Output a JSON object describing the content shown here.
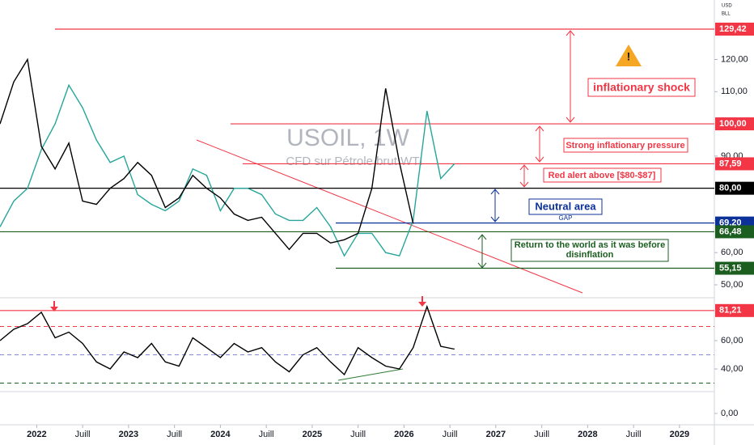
{
  "header": {
    "symbol": "USOIL, 1W",
    "description": "CFD sur Pétrole brut WTI",
    "currency": "USD",
    "unit": "BLL"
  },
  "annotations": {
    "shock": "inflationary shock",
    "pressure": "Strong inflationary pressure",
    "alert": "Red alert above [$80-$87]",
    "neutral": "Neutral area",
    "gap": "GAP",
    "return": "Return to the world as it was before disinflation"
  },
  "chart_data": [
    {
      "type": "line",
      "ylim": [
        46.74,
        138.47
      ],
      "xlim": [
        2021.6,
        2029.38
      ],
      "yticks": [
        {
          "value": 120,
          "label": "120,00"
        },
        {
          "value": 110,
          "label": "110,00"
        },
        {
          "value": 90,
          "label": "90,00"
        },
        {
          "value": 70,
          "label": "70,00"
        },
        {
          "value": 60,
          "label": "60,00"
        },
        {
          "value": 50,
          "label": "50,00"
        }
      ],
      "xticks": [
        2022,
        {
          "value": 2022.5,
          "label": "Juill"
        },
        2023,
        {
          "value": 2023.5,
          "label": "Juill"
        },
        2024,
        {
          "value": 2024.5,
          "label": "Juill"
        },
        2025,
        {
          "value": 2025.5,
          "label": "Juill"
        },
        2026,
        {
          "value": 2026.5,
          "label": "Juill"
        },
        2027,
        {
          "value": 2027.5,
          "label": "Juill"
        },
        2028,
        {
          "value": 2028.5,
          "label": "Juill"
        },
        2029
      ],
      "levels": [
        {
          "value": 129.42,
          "label": "129,42",
          "color": "#f23645"
        },
        {
          "value": 100,
          "label": "100,00",
          "color": "#f23645"
        },
        {
          "value": 87.59,
          "label": "87,59",
          "color": "#f23645"
        },
        {
          "value": 80,
          "label": "80,00",
          "color": "#000000"
        },
        {
          "value": 69.2,
          "label": "69,20",
          "color": "#0c3299"
        },
        {
          "value": 66.48,
          "label": "66,48",
          "color": "#1b5e20"
        },
        {
          "value": 55.15,
          "label": "55,15",
          "color": "#1b5e20"
        }
      ],
      "x": [
        2021.6,
        2021.75,
        2021.9,
        2022.05,
        2022.2,
        2022.35,
        2022.5,
        2022.65,
        2022.8,
        2022.95,
        2023.1,
        2023.25,
        2023.4,
        2023.55,
        2023.7,
        2023.85,
        2024.0,
        2024.15,
        2024.3,
        2024.45,
        2024.6,
        2024.75,
        2024.9,
        2025.05,
        2025.2,
        2025.35,
        2025.5,
        2025.65,
        2025.8,
        2025.95,
        2026.1,
        2026.25,
        2026.4,
        2026.55
      ],
      "series": [
        {
          "color": "#26a69a",
          "values": [
            68,
            76,
            80,
            92,
            100,
            112,
            105,
            95,
            88,
            90,
            78,
            75,
            73,
            76,
            86,
            84,
            73,
            80,
            80,
            78,
            72,
            70,
            70,
            74,
            68,
            59,
            66,
            66,
            60,
            59,
            70,
            104,
            83,
            87.6
          ]
        },
        {
          "color": "#000000",
          "values": [
            100,
            113,
            120,
            93,
            86,
            94,
            76,
            75,
            80,
            83,
            88,
            84,
            74,
            77,
            84,
            80,
            77,
            72,
            70,
            71,
            66,
            61,
            66,
            66,
            63,
            64,
            66,
            80,
            111,
            88,
            69,
            null,
            null,
            null
          ]
        }
      ]
    },
    {
      "type": "line",
      "ylim": [
        24.6,
        89.1
      ],
      "yticks": [
        {
          "value": 60,
          "label": "60,00"
        },
        {
          "value": 40,
          "label": "40,00"
        }
      ],
      "levels": [
        {
          "value": 81.21,
          "label": "81,21",
          "color": "#f23645"
        }
      ],
      "series": [
        {
          "color": "#000000",
          "values": [
            60,
            68,
            72,
            80,
            62,
            66,
            58,
            45,
            40,
            52,
            48,
            58,
            45,
            42,
            62,
            55,
            48,
            58,
            52,
            55,
            45,
            38,
            50,
            55,
            45,
            36,
            55,
            48,
            42,
            40,
            55,
            84,
            56,
            54
          ]
        }
      ]
    },
    {
      "type": "line",
      "ylim": [
        -1.4,
        2.6
      ],
      "yticks": [
        {
          "value": 0,
          "label": "0,00"
        }
      ]
    }
  ]
}
